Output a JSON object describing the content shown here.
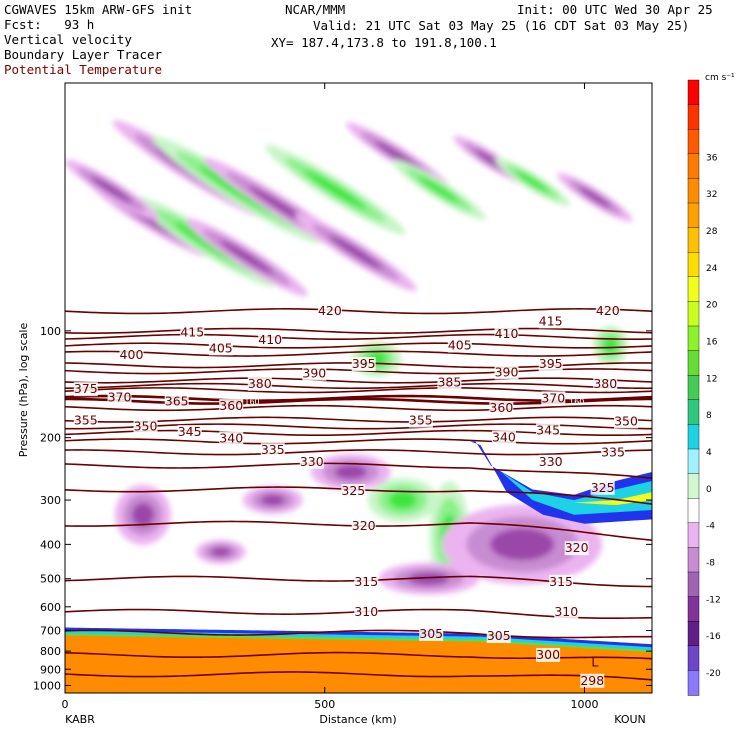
{
  "header": {
    "model": "CGWAVES 15km ARW-GFS init",
    "fcst_label": "Fcst:",
    "fcst_value": "93 h",
    "field1": "Vertical velocity",
    "field2": "Boundary Layer Tracer",
    "field3": "Potential Temperature",
    "org": "NCAR/MMM",
    "init": "Init: 00 UTC Wed 30 Apr 25",
    "valid": "Valid: 21 UTC Sat 03 May 25 (16 CDT Sat 03 May 25)",
    "xy": "XY= 187.4,173.8 to 191.8,100.1"
  },
  "colors": {
    "theta": "#6b0000",
    "tracer_orange": "#ff8c00",
    "tracer_green": "#66dd33",
    "tracer_yellow": "#f2ff1a",
    "tracer_cyan": "#1ed2e6",
    "tracer_blue": "#2233ee",
    "w_up_light": "#c8f5c8",
    "w_up_mid": "#8cf08c",
    "w_up_strong": "#3ce63c",
    "w_dn_light": "#ebb4f0",
    "w_dn_mid": "#c88cd2",
    "w_dn_strong": "#9b46aa"
  },
  "chart_data": {
    "type": "cross-section",
    "xlabel": "Distance (km)",
    "ylabel": "Pressure (hPa), log scale",
    "xlim": [
      0,
      1130
    ],
    "ylim": [
      1050,
      20
    ],
    "x_ticks": [
      0,
      500,
      1000
    ],
    "y_ticks": [
      100,
      200,
      300,
      400,
      500,
      600,
      700,
      800,
      900,
      1000
    ],
    "y_scale": "log",
    "endpoints": {
      "left": "KABR",
      "right": "KOUN"
    },
    "colorbar": {
      "units": "cm s⁻¹",
      "tick_labels": [
        36,
        32,
        28,
        24,
        20,
        16,
        12,
        8,
        4,
        0,
        -4,
        -8,
        -12,
        -16,
        -20
      ],
      "colors": [
        "#ff0000",
        "#ff3300",
        "#ff5a00",
        "#ff7a00",
        "#ff8c00",
        "#ffa000",
        "#ffc000",
        "#ffdc00",
        "#f2ff1a",
        "#c8ff1e",
        "#8cf22a",
        "#66dd33",
        "#44cc55",
        "#2ec880",
        "#1ed2e6",
        "#a0f0ff",
        "#d2f8d2",
        "#ffffff",
        "#ebb4f0",
        "#c88cd2",
        "#a064b4",
        "#82329b",
        "#641e8c",
        "#6e46c8",
        "#8c78ff"
      ]
    },
    "isentropes_K": [
      {
        "value": 420,
        "p": 88
      },
      {
        "value": 415,
        "p": 100
      },
      {
        "value": 410,
        "p": 104
      },
      {
        "value": 405,
        "p": 110
      },
      {
        "value": 400,
        "p": 116
      },
      {
        "value": 395,
        "p": 125
      },
      {
        "value": 390,
        "p": 130
      },
      {
        "value": 385,
        "p": 138
      },
      {
        "value": 380,
        "p": 143
      },
      {
        "value": 375,
        "p": 147
      },
      {
        "value": 370,
        "p": 155
      },
      {
        "value": 365,
        "p": 158
      },
      {
        "value": 360,
        "p": 165
      },
      {
        "value": 355,
        "p": 178
      },
      {
        "value": 350,
        "p": 186
      },
      {
        "value": 345,
        "p": 194
      },
      {
        "value": 340,
        "p": 205
      },
      {
        "value": 335,
        "p": 220
      },
      {
        "value": 330,
        "p": 240
      },
      {
        "value": 325,
        "p": 280
      },
      {
        "value": 320,
        "p": 350
      },
      {
        "value": 315,
        "p": 500
      },
      {
        "value": 310,
        "p": 620
      },
      {
        "value": 305,
        "p": 710
      },
      {
        "value": 300,
        "p": 820
      },
      {
        "value": 298,
        "p": 930
      }
    ],
    "theta_labels": [
      {
        "t": "420",
        "x": 510,
        "p": 88
      },
      {
        "t": "420",
        "x": 1045,
        "p": 88
      },
      {
        "t": "415",
        "x": 245,
        "p": 101
      },
      {
        "t": "415",
        "x": 935,
        "p": 94
      },
      {
        "t": "410",
        "x": 395,
        "p": 106
      },
      {
        "t": "410",
        "x": 850,
        "p": 102
      },
      {
        "t": "405",
        "x": 300,
        "p": 112
      },
      {
        "t": "405",
        "x": 760,
        "p": 110
      },
      {
        "t": "400",
        "x": 128,
        "p": 117
      },
      {
        "t": "395",
        "x": 575,
        "p": 124
      },
      {
        "t": "395",
        "x": 935,
        "p": 124
      },
      {
        "t": "390",
        "x": 480,
        "p": 132
      },
      {
        "t": "390",
        "x": 850,
        "p": 131
      },
      {
        "t": "385",
        "x": 740,
        "p": 140
      },
      {
        "t": "380",
        "x": 375,
        "p": 141
      },
      {
        "t": "380",
        "x": 1040,
        "p": 141
      },
      {
        "t": "375",
        "x": 40,
        "p": 146
      },
      {
        "t": "370",
        "x": 105,
        "p": 154
      },
      {
        "t": "370",
        "x": 940,
        "p": 155
      },
      {
        "t": "365",
        "x": 215,
        "p": 158
      },
      {
        "t": "360",
        "x": 320,
        "p": 163
      },
      {
        "t": "360",
        "x": 840,
        "p": 165
      },
      {
        "t": "355",
        "x": 40,
        "p": 179
      },
      {
        "t": "355",
        "x": 685,
        "p": 179
      },
      {
        "t": "350",
        "x": 155,
        "p": 186
      },
      {
        "t": "350",
        "x": 1080,
        "p": 180
      },
      {
        "t": "345",
        "x": 240,
        "p": 193
      },
      {
        "t": "345",
        "x": 930,
        "p": 191
      },
      {
        "t": "340",
        "x": 320,
        "p": 201
      },
      {
        "t": "340",
        "x": 845,
        "p": 200
      },
      {
        "t": "335",
        "x": 400,
        "p": 217
      },
      {
        "t": "335",
        "x": 1055,
        "p": 220
      },
      {
        "t": "330",
        "x": 475,
        "p": 234
      },
      {
        "t": "330",
        "x": 935,
        "p": 234
      },
      {
        "t": "325",
        "x": 555,
        "p": 283
      },
      {
        "t": "325",
        "x": 1035,
        "p": 277
      },
      {
        "t": "320",
        "x": 575,
        "p": 355
      },
      {
        "t": "320",
        "x": 985,
        "p": 410
      },
      {
        "t": "315",
        "x": 580,
        "p": 510
      },
      {
        "t": "315",
        "x": 955,
        "p": 510
      },
      {
        "t": "310",
        "x": 580,
        "p": 620
      },
      {
        "t": "310",
        "x": 965,
        "p": 620
      },
      {
        "t": "305",
        "x": 705,
        "p": 715
      },
      {
        "t": "305",
        "x": 835,
        "p": 725
      },
      {
        "t": "300",
        "x": 930,
        "p": 820
      },
      {
        "t": "298",
        "x": 1015,
        "p": 970
      }
    ],
    "small_labels": [
      {
        "t": "160",
        "x": 360,
        "p": 158
      },
      {
        "t": "160",
        "x": 985,
        "p": 158
      }
    ],
    "pressure_low_marker": {
      "t": "L",
      "x": 1020,
      "p": 860
    }
  }
}
